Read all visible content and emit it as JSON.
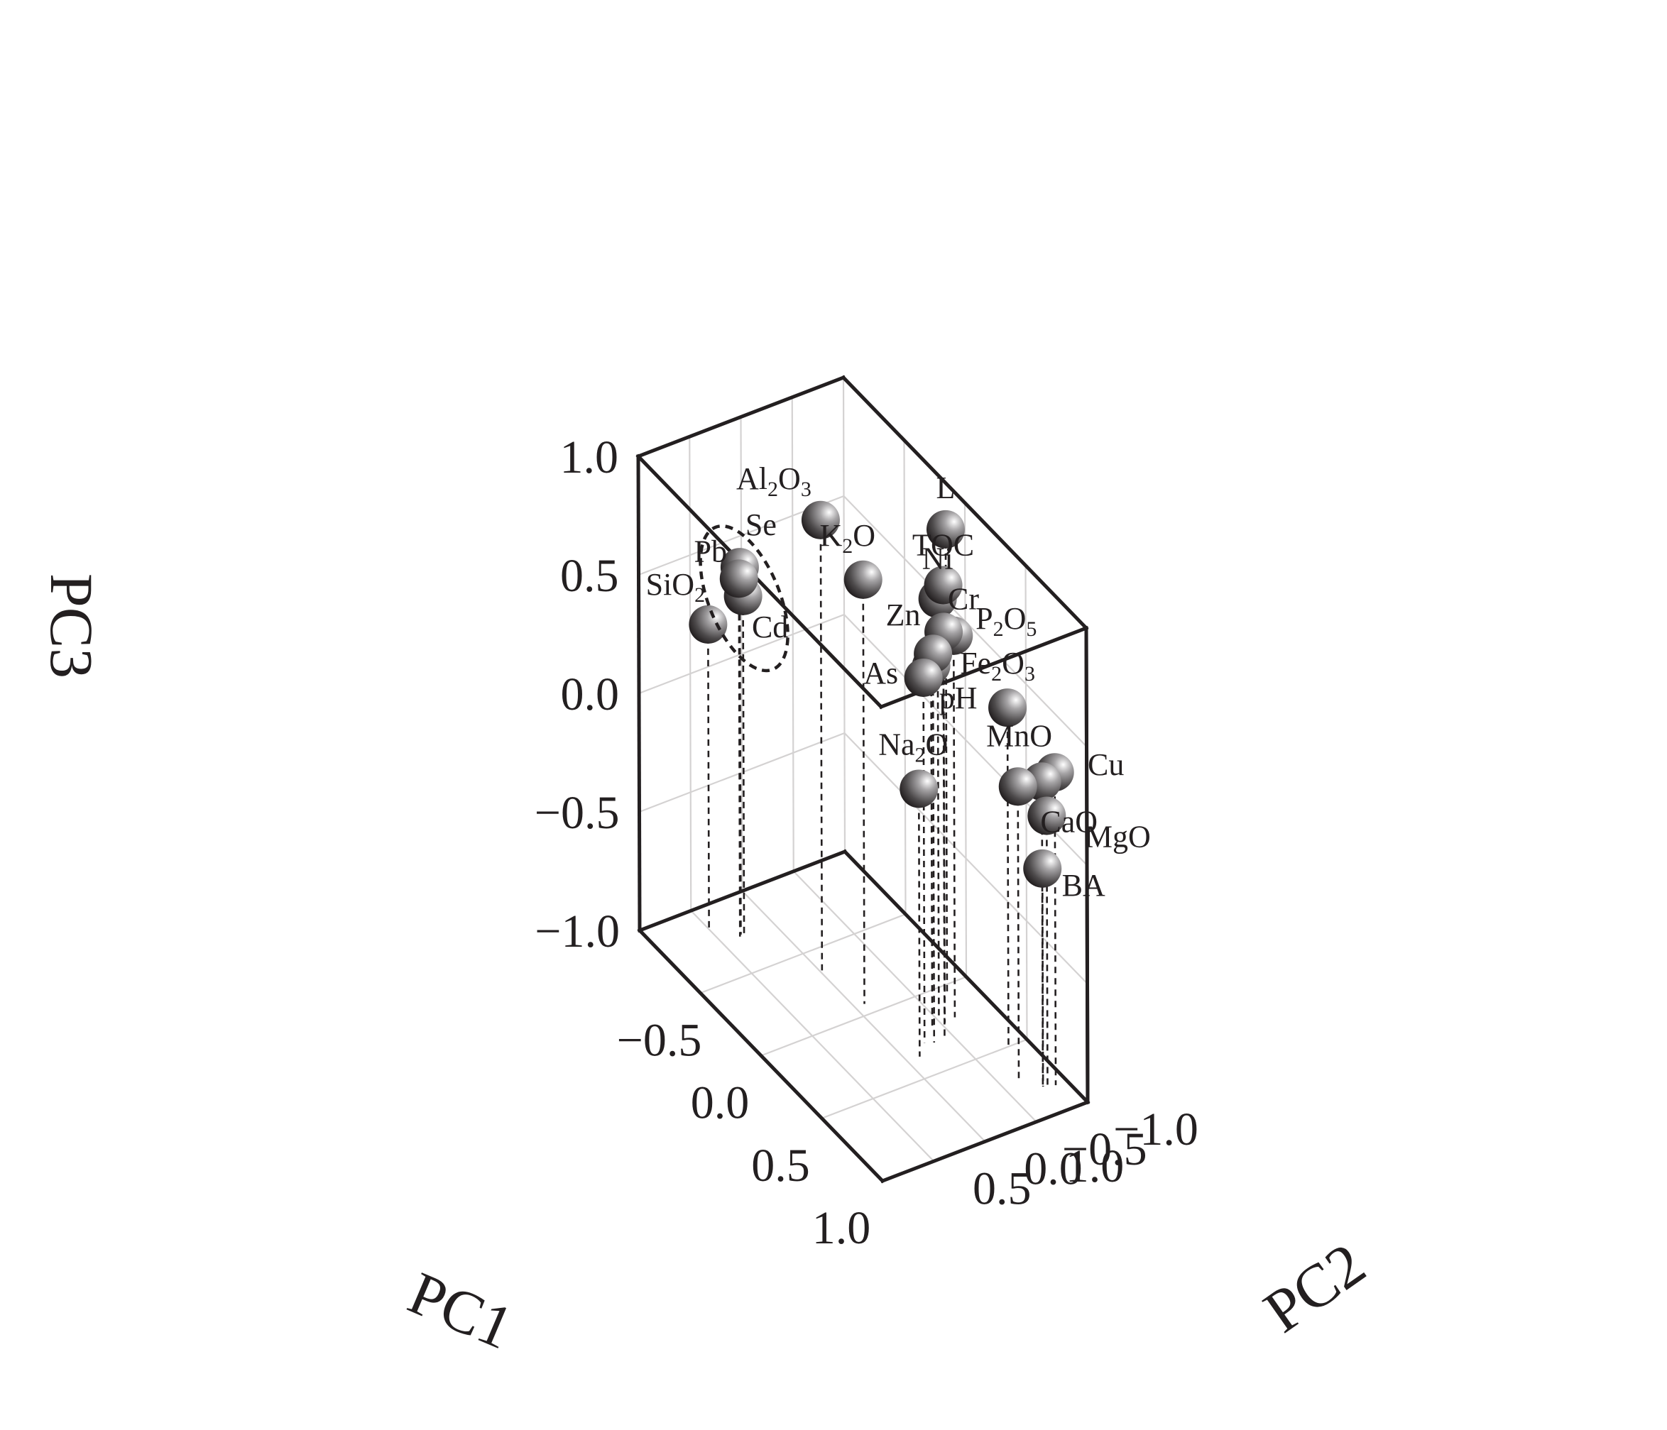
{
  "chart_data": {
    "type": "scatter",
    "projection": "3d",
    "title": "",
    "xlabel": "PC1",
    "ylabel": "PC2",
    "zlabel": "PC3",
    "xlim": [
      -1.0,
      1.0
    ],
    "ylim": [
      -1.0,
      1.0
    ],
    "zlim": [
      -1.0,
      1.0
    ],
    "x_ticks": [
      "−1.0",
      "−0.5",
      "0.0",
      "0.5",
      "1.0"
    ],
    "y_ticks": [
      "−1.0",
      "−0.5",
      "0.0",
      "0.5",
      "1.0"
    ],
    "z_ticks": [
      "−1.0",
      "−0.5",
      "0.0",
      "0.5",
      "1.0"
    ],
    "grid": true,
    "drop_lines": true,
    "grouped": [
      "Pb",
      "Se",
      "Cd"
    ],
    "points": [
      {
        "label": "TOC",
        "x": 0.32,
        "y": -0.41,
        "z": 0.92
      },
      {
        "label": "L",
        "x": 0.07,
        "y": -0.73,
        "z": 0.97
      },
      {
        "label": "Al₂O₃",
        "x": -0.36,
        "y": -0.02,
        "z": 0.9
      },
      {
        "label": "Ni",
        "x": 0.18,
        "y": -0.52,
        "z": 0.77
      },
      {
        "label": "K₂O",
        "x": -0.07,
        "y": -0.09,
        "z": 0.79
      },
      {
        "label": "Zn",
        "x": 0.31,
        "y": -0.32,
        "z": 0.64
      },
      {
        "label": "Cr",
        "x": 0.22,
        "y": -0.53,
        "z": 0.65
      },
      {
        "label": "P₂O₅",
        "x": 0.21,
        "y": -0.64,
        "z": 0.61
      },
      {
        "label": "As",
        "x": 0.29,
        "y": -0.25,
        "z": 0.54
      },
      {
        "label": "pH",
        "x": 0.21,
        "y": -0.42,
        "z": 0.52
      },
      {
        "label": "Se",
        "x": -0.75,
        "y": 0.31,
        "z": 0.55
      },
      {
        "label": "Pb",
        "x": -0.74,
        "y": 0.33,
        "z": 0.51
      },
      {
        "label": "Cd",
        "x": -0.74,
        "y": 0.29,
        "z": 0.43
      },
      {
        "label": "SiO₂",
        "x": -0.86,
        "y": 0.49,
        "z": 0.28
      },
      {
        "label": "Na₂O",
        "x": 0.36,
        "y": -0.12,
        "z": 0.13
      },
      {
        "label": "Fe₂O₃",
        "x": 0.5,
        "y": -0.82,
        "z": 0.43
      },
      {
        "label": "CaO",
        "x": 0.72,
        "y": -0.66,
        "z": 0.24
      },
      {
        "label": "MnO",
        "x": 0.8,
        "y": -0.8,
        "z": 0.28
      },
      {
        "label": "Cu",
        "x": 0.83,
        "y": -0.89,
        "z": 0.32
      },
      {
        "label": "MgO",
        "x": 0.83,
        "y": -0.81,
        "z": 0.15
      },
      {
        "label": "BA",
        "x": 0.81,
        "y": -0.79,
        "z": -0.08
      }
    ]
  }
}
